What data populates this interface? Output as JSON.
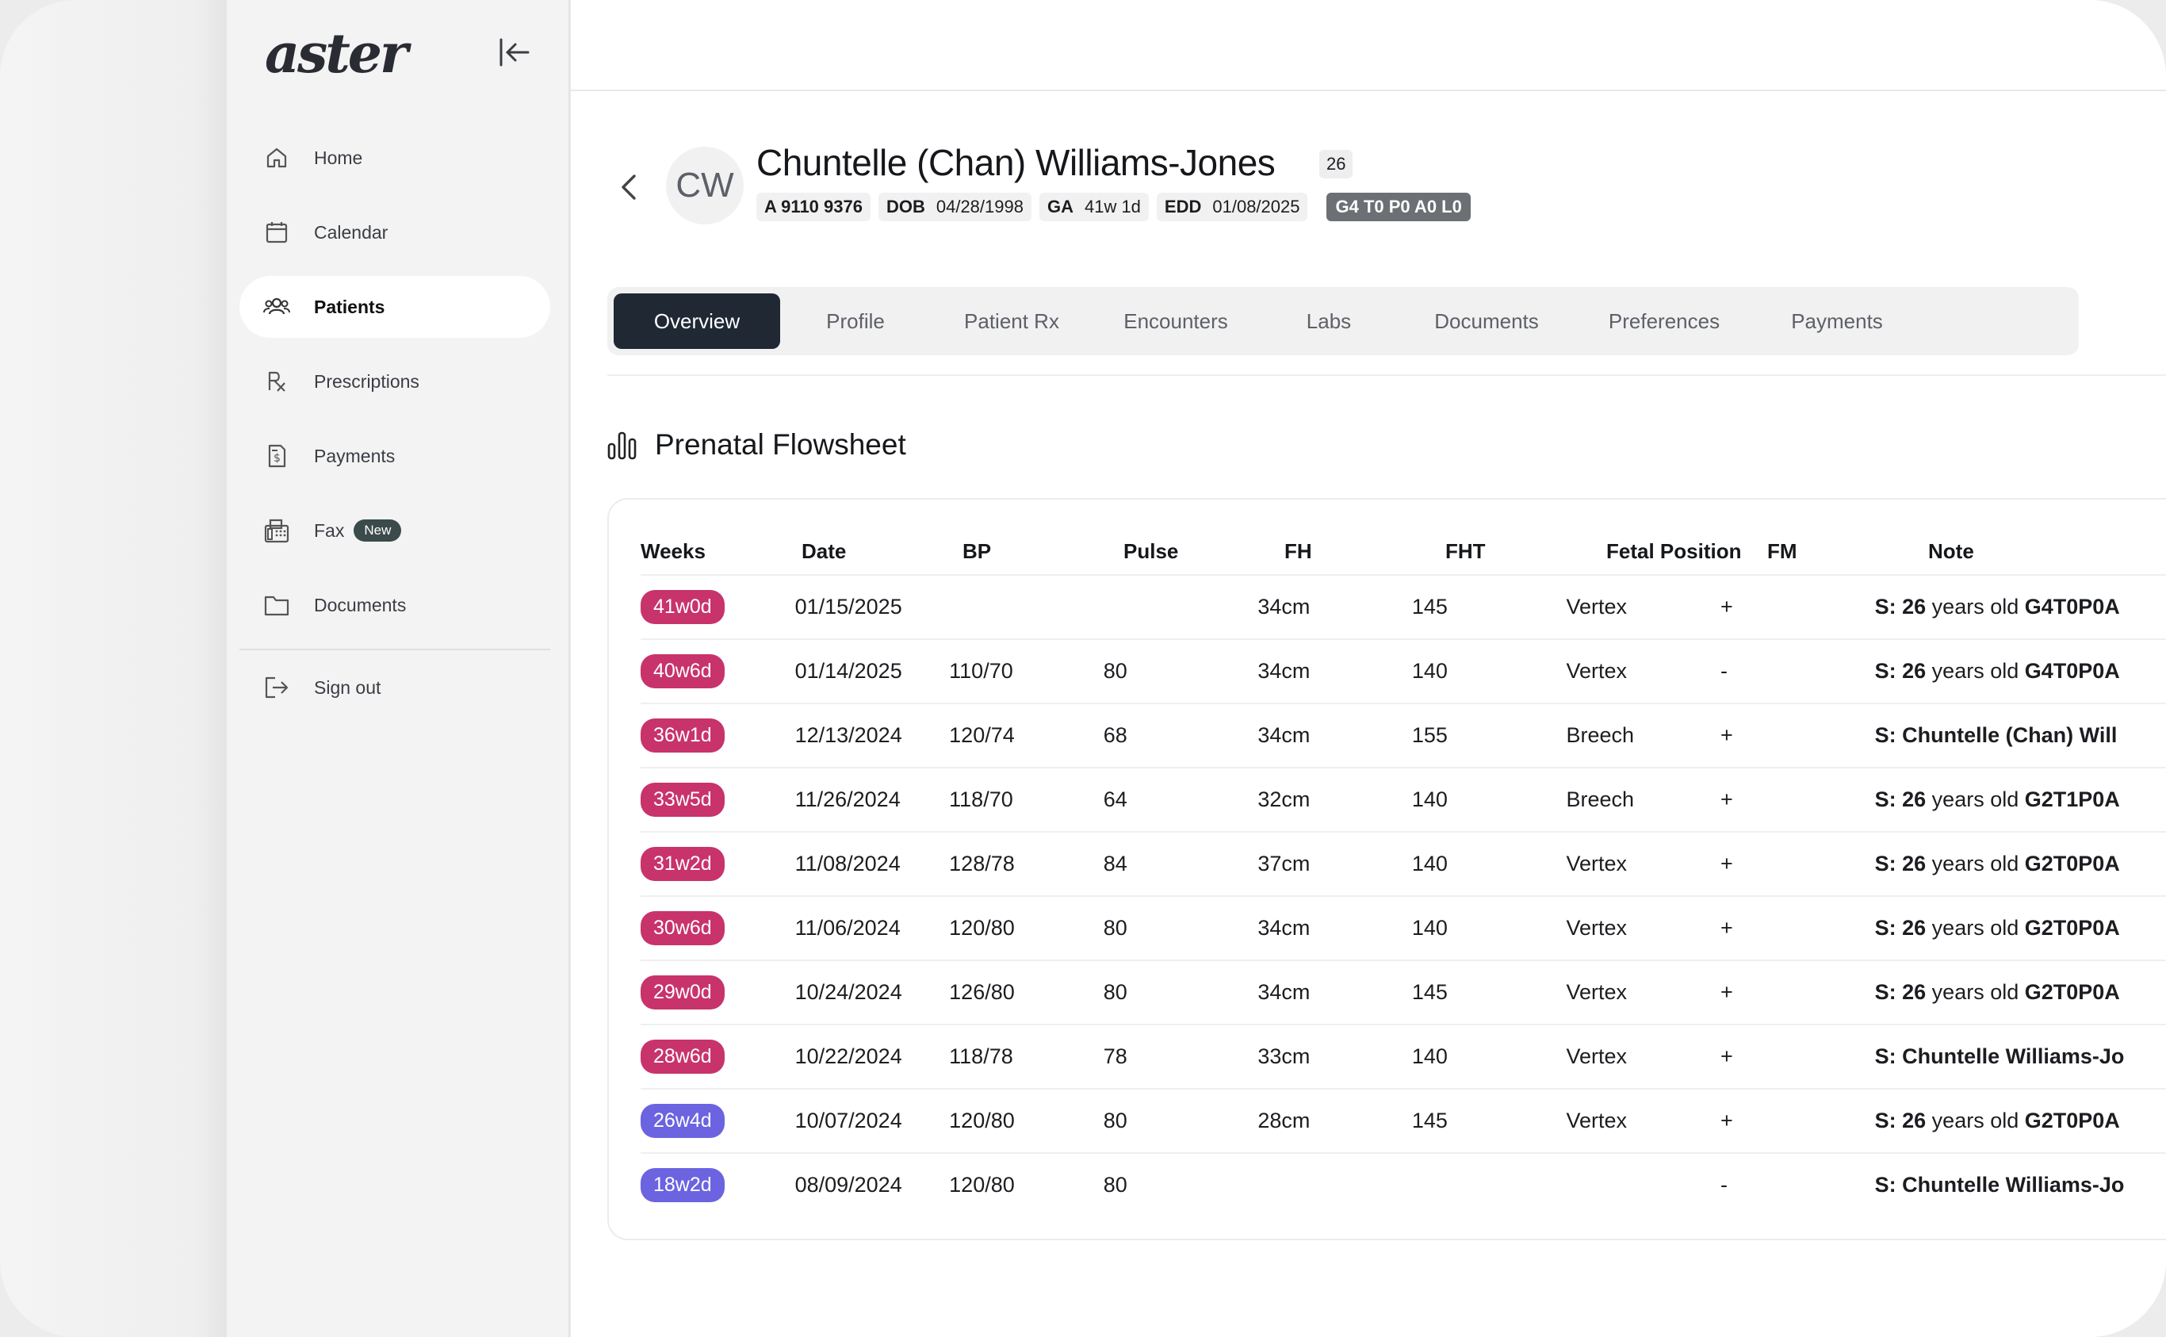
{
  "app": {
    "logo": "aster",
    "colors": {
      "accent_dark": "#202834",
      "week_pink": "#c8336b",
      "week_indigo": "#6b63e0",
      "badge_gray": "#6c6f73"
    }
  },
  "sidebar": {
    "collapse_icon": "collapse-left-icon",
    "items": [
      {
        "label": "Home",
        "icon": "home-icon"
      },
      {
        "label": "Calendar",
        "icon": "calendar-icon"
      },
      {
        "label": "Patients",
        "icon": "users-icon",
        "active": true
      },
      {
        "label": "Prescriptions",
        "icon": "rx-icon"
      },
      {
        "label": "Payments",
        "icon": "receipt-dollar-icon"
      },
      {
        "label": "Fax",
        "icon": "fax-icon",
        "badge": "New"
      },
      {
        "label": "Documents",
        "icon": "folder-icon"
      }
    ],
    "signout": {
      "label": "Sign out",
      "icon": "sign-out-icon"
    }
  },
  "patient": {
    "initials": "CW",
    "name": "Chuntelle (Chan) Williams-Jones",
    "age": "26",
    "mrn": "A 9110 9376",
    "dob_label": "DOB",
    "dob": "04/28/1998",
    "ga_label": "GA",
    "ga": "41w 1d",
    "edd_label": "EDD",
    "edd": "01/08/2025",
    "gtpal": "G4 T0 P0 A0 L0"
  },
  "tabs": [
    "Overview",
    "Profile",
    "Patient Rx",
    "Encounters",
    "Labs",
    "Documents",
    "Preferences",
    "Payments"
  ],
  "active_tab": "Overview",
  "flowsheet": {
    "title": "Prenatal Flowsheet",
    "icon": "bar-chart-icon",
    "columns": [
      "Weeks",
      "Date",
      "BP",
      "Pulse",
      "FH",
      "FHT",
      "Fetal Position",
      "FM",
      "Note"
    ],
    "rows": [
      {
        "weeks": "41w0d",
        "color": "pink",
        "date": "01/15/2025",
        "bp": "",
        "pulse": "",
        "fh": "34cm",
        "fht": "145",
        "position": "Vertex",
        "fm": "+",
        "note_prefix": "S: 26",
        "note_mid": " years old ",
        "note_suffix": "G4T0P0A"
      },
      {
        "weeks": "40w6d",
        "color": "pink",
        "date": "01/14/2025",
        "bp": "110/70",
        "pulse": "80",
        "fh": "34cm",
        "fht": "140",
        "position": "Vertex",
        "fm": "-",
        "note_prefix": "S: 26",
        "note_mid": " years old ",
        "note_suffix": "G4T0P0A"
      },
      {
        "weeks": "36w1d",
        "color": "pink",
        "date": "12/13/2024",
        "bp": "120/74",
        "pulse": "68",
        "fh": "34cm",
        "fht": "155",
        "position": "Breech",
        "fm": "+",
        "note_prefix": "S: Chuntelle (Chan) Will",
        "note_mid": "",
        "note_suffix": ""
      },
      {
        "weeks": "33w5d",
        "color": "pink",
        "date": "11/26/2024",
        "bp": "118/70",
        "pulse": "64",
        "fh": "32cm",
        "fht": "140",
        "position": "Breech",
        "fm": "+",
        "note_prefix": "S: 26",
        "note_mid": " years old ",
        "note_suffix": "G2T1P0A"
      },
      {
        "weeks": "31w2d",
        "color": "pink",
        "date": "11/08/2024",
        "bp": "128/78",
        "pulse": "84",
        "fh": "37cm",
        "fht": "140",
        "position": "Vertex",
        "fm": "+",
        "note_prefix": "S: 26",
        "note_mid": " years old ",
        "note_suffix": "G2T0P0A"
      },
      {
        "weeks": "30w6d",
        "color": "pink",
        "date": "11/06/2024",
        "bp": "120/80",
        "pulse": "80",
        "fh": "34cm",
        "fht": "140",
        "position": "Vertex",
        "fm": "+",
        "note_prefix": "S: 26",
        "note_mid": " years old ",
        "note_suffix": "G2T0P0A"
      },
      {
        "weeks": "29w0d",
        "color": "pink",
        "date": "10/24/2024",
        "bp": "126/80",
        "pulse": "80",
        "fh": "34cm",
        "fht": "145",
        "position": "Vertex",
        "fm": "+",
        "note_prefix": "S: 26",
        "note_mid": " years old ",
        "note_suffix": "G2T0P0A"
      },
      {
        "weeks": "28w6d",
        "color": "pink",
        "date": "10/22/2024",
        "bp": "118/78",
        "pulse": "78",
        "fh": "33cm",
        "fht": "140",
        "position": "Vertex",
        "fm": "+",
        "note_prefix": "S: Chuntelle Williams-Jo",
        "note_mid": "",
        "note_suffix": ""
      },
      {
        "weeks": "26w4d",
        "color": "indigo",
        "date": "10/07/2024",
        "bp": "120/80",
        "pulse": "80",
        "fh": "28cm",
        "fht": "145",
        "position": "Vertex",
        "fm": "+",
        "note_prefix": "S: 26",
        "note_mid": " years old ",
        "note_suffix": "G2T0P0A"
      },
      {
        "weeks": "18w2d",
        "color": "indigo",
        "date": "08/09/2024",
        "bp": "120/80",
        "pulse": "80",
        "fh": "",
        "fht": "",
        "position": "",
        "fm": "-",
        "note_prefix": "S: Chuntelle Williams-Jo",
        "note_mid": "",
        "note_suffix": ""
      }
    ]
  }
}
